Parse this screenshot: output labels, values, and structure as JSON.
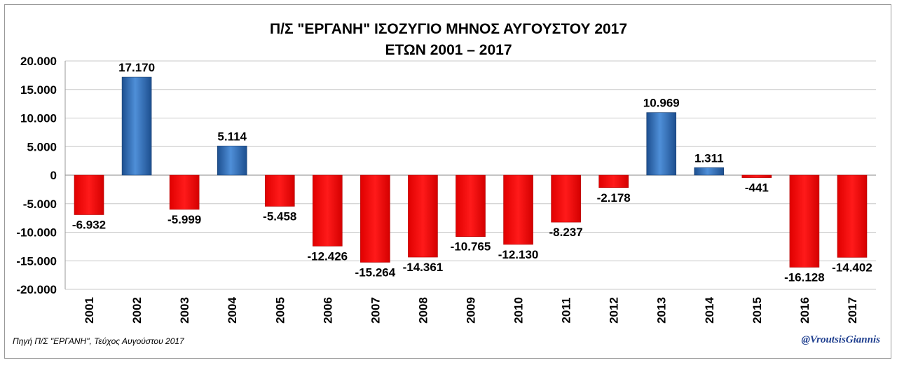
{
  "chart_data": {
    "type": "bar",
    "title": [
      "Π/Σ \"ΕΡΓΑΝΗ\" ΙΣΟΖΥΓΙΟ ΜΗΝΟΣ ΑΥΓΟΥΣΤΟΥ 2017",
      "ΕΤΩΝ 2001 – 2017"
    ],
    "categories": [
      "2001",
      "2002",
      "2003",
      "2004",
      "2005",
      "2006",
      "2007",
      "2008",
      "2009",
      "2010",
      "2011",
      "2012",
      "2013",
      "2014",
      "2015",
      "2016",
      "2017"
    ],
    "values": [
      -6932,
      17170,
      -5999,
      5114,
      -5458,
      -12426,
      -15264,
      -14361,
      -10765,
      -12130,
      -8237,
      -2178,
      10969,
      1311,
      -441,
      -16128,
      -14402
    ],
    "data_labels": [
      "-6.932",
      "17.170",
      "-5.999",
      "5.114",
      "-5.458",
      "-12.426",
      "-15.264",
      "-14.361",
      "-10.765",
      "-12.130",
      "-8.237",
      "-2.178",
      "10.969",
      "1.311",
      "-441",
      "-16.128",
      "-14.402"
    ],
    "yticks": [
      20000,
      15000,
      10000,
      5000,
      0,
      -5000,
      -10000,
      -15000,
      -20000
    ],
    "ytick_labels": [
      "20.000",
      "15.000",
      "10.000",
      "5.000",
      "0",
      "-5.000",
      "-10.000",
      "-15.000",
      "-20.000"
    ],
    "ylim": [
      -20000,
      20000
    ],
    "xlabel": "",
    "ylabel": "",
    "grid": true,
    "colors": {
      "positive": "#2f6fb8",
      "negative": "#ff0000"
    }
  },
  "footer": {
    "source": "Πηγή Π/Σ \"ΕΡΓΑΝΗ\", Τεύχος Αυγούστου 2017",
    "handle": "@VroutsisGiannis"
  }
}
